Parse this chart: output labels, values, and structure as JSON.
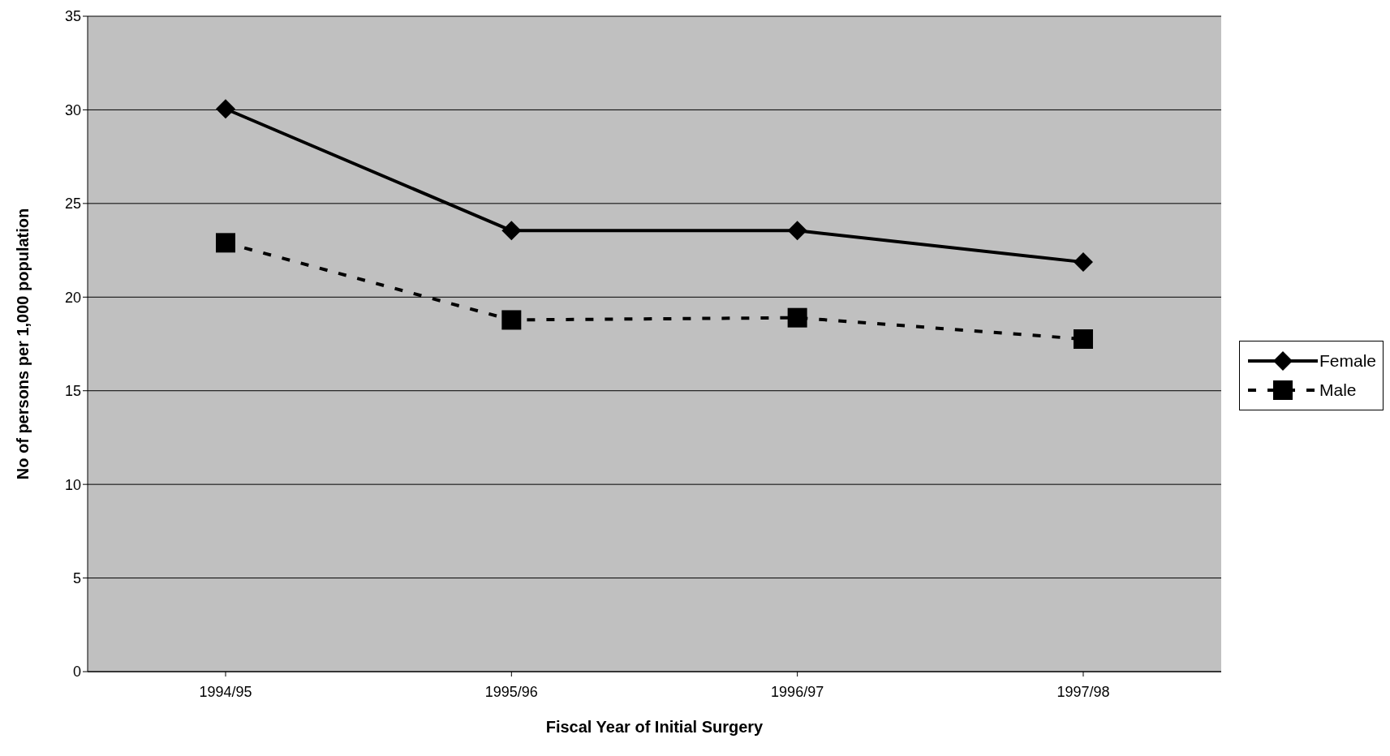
{
  "chart_data": {
    "type": "line",
    "xlabel": "Fiscal Year of Initial Surgery",
    "ylabel": "No of persons per 1,000 population",
    "categories": [
      "1994/95",
      "1995/96",
      "1996/97",
      "1997/98"
    ],
    "series": [
      {
        "name": "Female",
        "color": "#000000",
        "marker": "diamond",
        "line_style": "solid",
        "values": [
          30.05,
          23.55,
          23.55,
          21.87
        ]
      },
      {
        "name": "Male",
        "color": "#000000",
        "marker": "square",
        "line_style": "dashed",
        "values": [
          22.9,
          18.78,
          18.9,
          17.76
        ]
      }
    ],
    "ylim": [
      0,
      35
    ],
    "yticks": [
      0,
      5,
      10,
      15,
      20,
      25,
      30,
      35
    ],
    "grid": "y",
    "legend": "right"
  }
}
